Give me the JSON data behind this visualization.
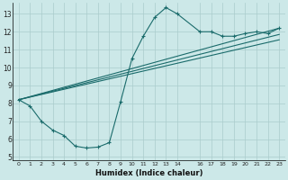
{
  "xlabel": "Humidex (Indice chaleur)",
  "bg_color": "#cce8e8",
  "grid_color": "#aacccc",
  "line_color": "#1a6b6b",
  "xlim": [
    -0.5,
    23.5
  ],
  "ylim": [
    4.8,
    13.6
  ],
  "yticks": [
    5,
    6,
    7,
    8,
    9,
    10,
    11,
    12,
    13
  ],
  "xticks": [
    0,
    1,
    2,
    3,
    4,
    5,
    6,
    7,
    8,
    9,
    10,
    11,
    12,
    13,
    14,
    16,
    17,
    18,
    19,
    20,
    21,
    22,
    23
  ],
  "series1_x": [
    0,
    1,
    2,
    3,
    4,
    5,
    6,
    7,
    8,
    9,
    10,
    11,
    12,
    13,
    14,
    16,
    17,
    18,
    19,
    20,
    21,
    22,
    23
  ],
  "series1_y": [
    8.2,
    7.85,
    7.0,
    6.5,
    6.2,
    5.6,
    5.5,
    5.55,
    5.8,
    8.1,
    10.5,
    11.75,
    12.8,
    13.35,
    13.0,
    12.0,
    12.0,
    11.75,
    11.75,
    11.9,
    12.0,
    11.9,
    12.2
  ],
  "line2_x": [
    0,
    23
  ],
  "line2_y": [
    8.2,
    12.2
  ],
  "line3_x": [
    0,
    23
  ],
  "line3_y": [
    8.2,
    11.85
  ],
  "line4_x": [
    0,
    23
  ],
  "line4_y": [
    8.2,
    11.55
  ]
}
